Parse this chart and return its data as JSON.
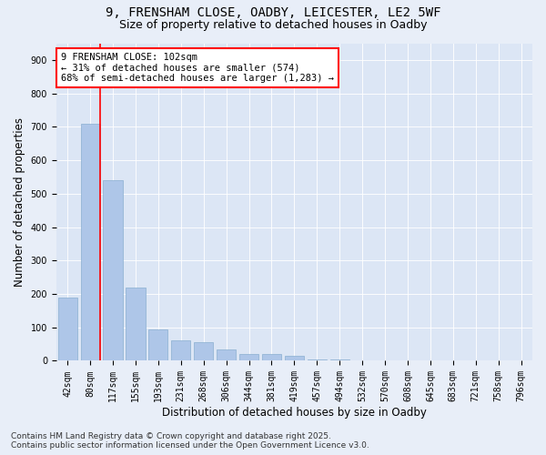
{
  "title_line1": "9, FRENSHAM CLOSE, OADBY, LEICESTER, LE2 5WF",
  "title_line2": "Size of property relative to detached houses in Oadby",
  "xlabel": "Distribution of detached houses by size in Oadby",
  "ylabel": "Number of detached properties",
  "categories": [
    "42sqm",
    "80sqm",
    "117sqm",
    "155sqm",
    "193sqm",
    "231sqm",
    "268sqm",
    "306sqm",
    "344sqm",
    "381sqm",
    "419sqm",
    "457sqm",
    "494sqm",
    "532sqm",
    "570sqm",
    "608sqm",
    "645sqm",
    "683sqm",
    "721sqm",
    "758sqm",
    "796sqm"
  ],
  "values": [
    190,
    710,
    540,
    220,
    95,
    60,
    55,
    35,
    20,
    20,
    15,
    5,
    5,
    2,
    0,
    0,
    0,
    2,
    0,
    0,
    2
  ],
  "bar_color": "#aec6e8",
  "bar_edge_color": "#8aafd0",
  "vline_color": "red",
  "vline_x": 1.425,
  "annotation_text": "9 FRENSHAM CLOSE: 102sqm\n← 31% of detached houses are smaller (574)\n68% of semi-detached houses are larger (1,283) →",
  "annotation_box_color": "white",
  "annotation_box_edge": "red",
  "ylim": [
    0,
    950
  ],
  "yticks": [
    0,
    100,
    200,
    300,
    400,
    500,
    600,
    700,
    800,
    900
  ],
  "background_color": "#e8eef8",
  "plot_bg_color": "#dce6f5",
  "footer_line1": "Contains HM Land Registry data © Crown copyright and database right 2025.",
  "footer_line2": "Contains public sector information licensed under the Open Government Licence v3.0.",
  "title_fontsize": 10,
  "subtitle_fontsize": 9,
  "axis_label_fontsize": 8.5,
  "tick_fontsize": 7,
  "annotation_fontsize": 7.5,
  "footer_fontsize": 6.5
}
